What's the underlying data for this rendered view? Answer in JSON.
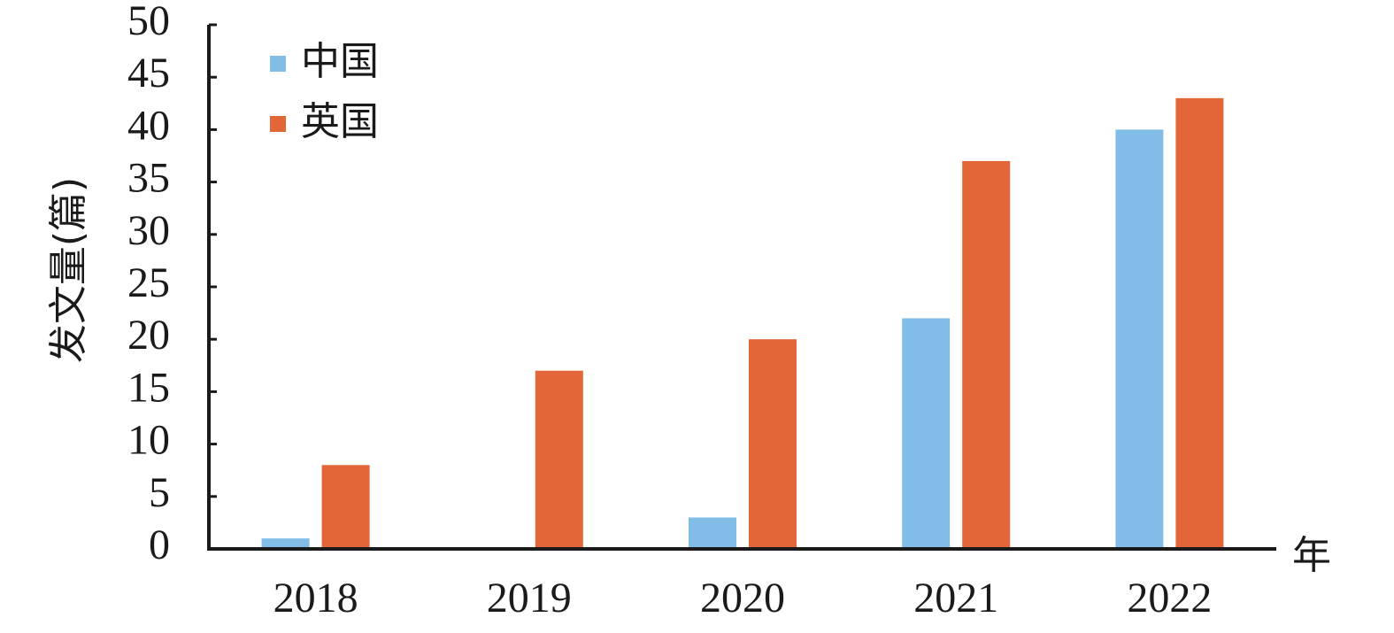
{
  "chart_data": {
    "type": "bar",
    "categories": [
      "2018",
      "2019",
      "2020",
      "2021",
      "2022"
    ],
    "series": [
      {
        "name": "中国",
        "color": "#82bde8",
        "values": [
          1,
          0,
          3,
          22,
          40
        ]
      },
      {
        "name": "英国",
        "color": "#e26637",
        "values": [
          8,
          17,
          20,
          37,
          43
        ]
      }
    ],
    "ylabel": "发文量(篇)",
    "xlabel": "年",
    "ylim": [
      0,
      50
    ],
    "yticks": [
      "0",
      "5",
      "10",
      "15",
      "20",
      "25",
      "30",
      "35",
      "40",
      "45",
      "50"
    ],
    "grid": false,
    "legend_position": "top-left"
  }
}
